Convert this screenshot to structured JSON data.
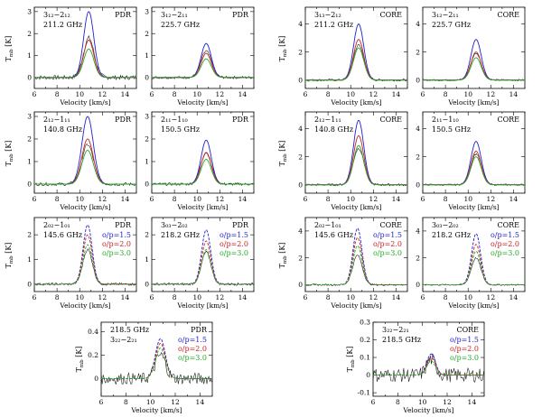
{
  "figure": {
    "ylabel": "T",
    "ylabel_sub": "mb",
    "ylabel_unit": "[K]",
    "xlabel": "Velocity [km/s]"
  },
  "legend_labels": [
    "o/p=1.5",
    "o/p=2.0",
    "o/p=3.0"
  ],
  "chart_data": [
    {
      "type": "line",
      "id": "r1c1",
      "region": "PDR",
      "transition": "3₁₂−2₁₂",
      "frequency": "211.2 GHz",
      "xlim": [
        6,
        15
      ],
      "ylim": [
        -0.5,
        3.2
      ],
      "yticks": [
        0,
        1,
        2,
        3
      ],
      "xticks": [
        6,
        8,
        10,
        12,
        14
      ],
      "peaks": [
        3.0,
        1.7,
        1.3
      ],
      "center": 10.8,
      "width": 0.45,
      "obs_peak": 1.8,
      "noise": 0.1,
      "legend": false,
      "series": [
        {
          "name": "o/p=1.5",
          "color": "#2222cc",
          "peak": 3.0
        },
        {
          "name": "o/p=2.0",
          "color": "#cc2222",
          "peak": 1.7
        },
        {
          "name": "o/p=3.0",
          "color": "#22aa22",
          "peak": 1.3
        }
      ]
    },
    {
      "type": "line",
      "id": "r1c2",
      "region": "PDR",
      "transition": "3₁₂−2₁₁",
      "frequency": "225.7 GHz",
      "xlim": [
        6,
        15
      ],
      "ylim": [
        -0.5,
        3.2
      ],
      "yticks": [
        0,
        1,
        2,
        3
      ],
      "xticks": [
        6,
        8,
        10,
        12,
        14
      ],
      "center": 10.8,
      "width": 0.45,
      "obs_peak": 1.2,
      "noise": 0.06,
      "legend": false,
      "series": [
        {
          "name": "o/p=1.5",
          "color": "#2222cc",
          "peak": 1.55
        },
        {
          "name": "o/p=2.0",
          "color": "#cc2222",
          "peak": 1.1
        },
        {
          "name": "o/p=3.0",
          "color": "#22aa22",
          "peak": 0.85
        }
      ]
    },
    {
      "type": "line",
      "id": "r1c3",
      "region": "CORE",
      "transition": "3₁₃−2₁₂",
      "frequency": "211.2 GHz",
      "xlim": [
        6,
        15
      ],
      "ylim": [
        -0.6,
        5.2
      ],
      "yticks": [
        0,
        2,
        4
      ],
      "xticks": [
        6,
        8,
        10,
        12,
        14
      ],
      "center": 10.7,
      "width": 0.45,
      "obs_peak": 2.5,
      "noise": 0.08,
      "legend": false,
      "series": [
        {
          "name": "o/p=1.5",
          "color": "#2222cc",
          "peak": 4.0
        },
        {
          "name": "o/p=2.0",
          "color": "#cc2222",
          "peak": 2.9
        },
        {
          "name": "o/p=3.0",
          "color": "#22aa22",
          "peak": 2.3
        }
      ]
    },
    {
      "type": "line",
      "id": "r1c4",
      "region": "CORE",
      "transition": "3₁₂−2₁₁",
      "frequency": "225.7 GHz",
      "xlim": [
        6,
        15
      ],
      "ylim": [
        -0.6,
        5.2
      ],
      "yticks": [
        0,
        2,
        4
      ],
      "xticks": [
        6,
        8,
        10,
        12,
        14
      ],
      "center": 10.7,
      "width": 0.45,
      "obs_peak": 1.9,
      "noise": 0.06,
      "legend": false,
      "series": [
        {
          "name": "o/p=1.5",
          "color": "#2222cc",
          "peak": 2.9
        },
        {
          "name": "o/p=2.0",
          "color": "#cc2222",
          "peak": 2.0
        },
        {
          "name": "o/p=3.0",
          "color": "#22aa22",
          "peak": 1.6
        }
      ]
    },
    {
      "type": "line",
      "id": "r2c1",
      "region": "PDR",
      "transition": "2₁₂−1₁₁",
      "frequency": "140.8 GHz",
      "xlim": [
        6,
        15
      ],
      "ylim": [
        -0.4,
        3.2
      ],
      "yticks": [
        0,
        1,
        2,
        3
      ],
      "xticks": [
        6,
        8,
        10,
        12,
        14
      ],
      "center": 10.7,
      "width": 0.5,
      "obs_peak": 1.75,
      "noise": 0.07,
      "legend": false,
      "series": [
        {
          "name": "o/p=1.5",
          "color": "#2222cc",
          "peak": 3.0
        },
        {
          "name": "o/p=2.0",
          "color": "#cc2222",
          "peak": 2.0
        },
        {
          "name": "o/p=3.0",
          "color": "#22aa22",
          "peak": 1.5
        }
      ]
    },
    {
      "type": "line",
      "id": "r2c2",
      "region": "PDR",
      "transition": "2₁₁−1₁₀",
      "frequency": "150.5 GHz",
      "xlim": [
        6,
        15
      ],
      "ylim": [
        -0.4,
        3.2
      ],
      "yticks": [
        0,
        1,
        2,
        3
      ],
      "xticks": [
        6,
        8,
        10,
        12,
        14
      ],
      "center": 10.8,
      "width": 0.45,
      "obs_peak": 1.4,
      "noise": 0.06,
      "legend": false,
      "series": [
        {
          "name": "o/p=1.5",
          "color": "#2222cc",
          "peak": 1.95
        },
        {
          "name": "o/p=2.0",
          "color": "#cc2222",
          "peak": 1.4
        },
        {
          "name": "o/p=3.0",
          "color": "#22aa22",
          "peak": 1.1
        }
      ]
    },
    {
      "type": "line",
      "id": "r2c3",
      "region": "CORE",
      "transition": "2₁₂−1₁₁",
      "frequency": "140.8 GHz",
      "xlim": [
        6,
        15
      ],
      "ylim": [
        -0.6,
        5.2
      ],
      "yticks": [
        0,
        2,
        4
      ],
      "xticks": [
        6,
        8,
        10,
        12,
        14
      ],
      "center": 10.7,
      "width": 0.45,
      "obs_peak": 2.6,
      "noise": 0.08,
      "legend": false,
      "series": [
        {
          "name": "o/p=1.5",
          "color": "#2222cc",
          "peak": 4.6
        },
        {
          "name": "o/p=2.0",
          "color": "#cc2222",
          "peak": 3.5
        },
        {
          "name": "o/p=3.0",
          "color": "#22aa22",
          "peak": 2.8
        }
      ]
    },
    {
      "type": "line",
      "id": "r2c4",
      "region": "CORE",
      "transition": "2₁₁−1₁₀",
      "frequency": "150.5 GHz",
      "xlim": [
        6,
        15
      ],
      "ylim": [
        -0.6,
        5.2
      ],
      "yticks": [
        0,
        2,
        4
      ],
      "xticks": [
        6,
        8,
        10,
        12,
        14
      ],
      "center": 10.7,
      "width": 0.45,
      "obs_peak": 2.2,
      "noise": 0.06,
      "legend": false,
      "series": [
        {
          "name": "o/p=1.5",
          "color": "#2222cc",
          "peak": 3.1
        },
        {
          "name": "o/p=2.0",
          "color": "#cc2222",
          "peak": 2.4
        },
        {
          "name": "o/p=3.0",
          "color": "#22aa22",
          "peak": 2.0
        }
      ]
    },
    {
      "type": "line",
      "id": "r3c1",
      "region": "PDR",
      "transition": "2₀₂−1₀₁",
      "frequency": "145.6 GHz",
      "xlim": [
        6,
        15
      ],
      "ylim": [
        -0.3,
        2.7
      ],
      "yticks": [
        0,
        1,
        2
      ],
      "xticks": [
        6,
        8,
        10,
        12,
        14
      ],
      "center": 10.7,
      "width": 0.4,
      "obs_peak": 1.4,
      "noise": 0.05,
      "legend": true,
      "series": [
        {
          "name": "o/p=1.5",
          "color": "#2222cc",
          "peak": 2.4
        },
        {
          "name": "o/p=2.0",
          "color": "#cc2222",
          "peak": 2.0
        },
        {
          "name": "o/p=3.0",
          "color": "#22aa22",
          "peak": 1.6
        }
      ]
    },
    {
      "type": "line",
      "id": "r3c2",
      "region": "PDR",
      "transition": "3₀₃−2₀₂",
      "frequency": "218.2 GHz",
      "xlim": [
        6,
        15
      ],
      "ylim": [
        -0.3,
        2.7
      ],
      "yticks": [
        0,
        1,
        2
      ],
      "xticks": [
        6,
        8,
        10,
        12,
        14
      ],
      "center": 10.8,
      "width": 0.4,
      "obs_peak": 1.3,
      "noise": 0.05,
      "legend": true,
      "series": [
        {
          "name": "o/p=1.5",
          "color": "#2222cc",
          "peak": 2.2
        },
        {
          "name": "o/p=2.0",
          "color": "#cc2222",
          "peak": 1.75
        },
        {
          "name": "o/p=3.0",
          "color": "#22aa22",
          "peak": 1.4
        }
      ]
    },
    {
      "type": "line",
      "id": "r3c3",
      "region": "CORE",
      "transition": "2₀₂−1₀₁",
      "frequency": "145.6 GHz",
      "xlim": [
        6,
        15
      ],
      "ylim": [
        -0.5,
        5.0
      ],
      "yticks": [
        0,
        2,
        4
      ],
      "xticks": [
        6,
        8,
        10,
        12,
        14
      ],
      "center": 10.6,
      "width": 0.4,
      "obs_peak": 2.2,
      "noise": 0.06,
      "legend": true,
      "series": [
        {
          "name": "o/p=1.5",
          "color": "#2222cc",
          "peak": 4.2
        },
        {
          "name": "o/p=2.0",
          "color": "#cc2222",
          "peak": 3.5
        },
        {
          "name": "o/p=3.0",
          "color": "#22aa22",
          "peak": 2.9
        }
      ]
    },
    {
      "type": "line",
      "id": "r3c4",
      "region": "CORE",
      "transition": "3₀₃−2₀₂",
      "frequency": "218.2 GHz",
      "xlim": [
        6,
        15
      ],
      "ylim": [
        -0.5,
        5.0
      ],
      "yticks": [
        0,
        2,
        4
      ],
      "xticks": [
        6,
        8,
        10,
        12,
        14
      ],
      "center": 10.7,
      "width": 0.4,
      "obs_peak": 2.0,
      "noise": 0.05,
      "legend": true,
      "series": [
        {
          "name": "o/p=1.5",
          "color": "#2222cc",
          "peak": 3.8
        },
        {
          "name": "o/p=2.0",
          "color": "#cc2222",
          "peak": 3.0
        },
        {
          "name": "o/p=3.0",
          "color": "#22aa22",
          "peak": 2.5
        }
      ]
    },
    {
      "type": "line",
      "id": "r4c1",
      "region": "PDR",
      "transition": "3₂₂−2₂₁",
      "frequency": "218.5 GHz",
      "xlim": [
        6,
        15
      ],
      "ylim": [
        -0.15,
        0.48
      ],
      "yticks": [
        0,
        0.2,
        0.4
      ],
      "xticks": [
        6,
        8,
        10,
        12,
        14
      ],
      "center": 10.8,
      "width": 0.4,
      "obs_peak": 0.2,
      "noise": 0.05,
      "legend": true,
      "series": [
        {
          "name": "o/p=1.5",
          "color": "#2222cc",
          "peak": 0.34
        },
        {
          "name": "o/p=2.0",
          "color": "#cc2222",
          "peak": 0.3
        },
        {
          "name": "o/p=3.0",
          "color": "#22aa22",
          "peak": 0.26
        }
      ]
    },
    {
      "type": "line",
      "id": "r4c2",
      "region": "CORE",
      "transition": "3₂₂−2₂₁",
      "frequency": "218.5 GHz",
      "xlim": [
        6,
        15
      ],
      "ylim": [
        -0.12,
        0.3
      ],
      "yticks": [
        -0.1,
        0,
        0.1,
        0.2,
        0.3
      ],
      "xticks": [
        6,
        8,
        10,
        12,
        14
      ],
      "center": 10.7,
      "width": 0.35,
      "obs_peak": 0.09,
      "noise": 0.04,
      "legend": true,
      "series": [
        {
          "name": "o/p=1.5",
          "color": "#2222cc",
          "peak": 0.12
        },
        {
          "name": "o/p=2.0",
          "color": "#cc2222",
          "peak": 0.1
        },
        {
          "name": "o/p=3.0",
          "color": "#22aa22",
          "peak": 0.08
        }
      ]
    }
  ]
}
